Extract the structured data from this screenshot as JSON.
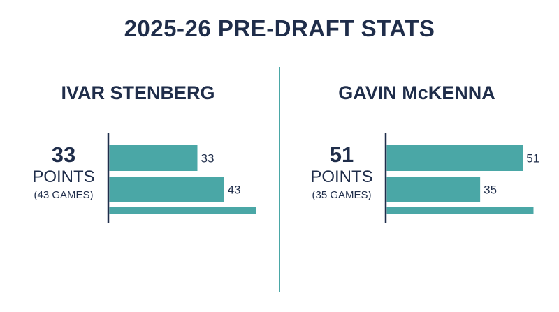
{
  "title": "2025-26 PRE-DRAFT STATS",
  "colors": {
    "bar": "#4aa7a6",
    "text": "#1f2d4a",
    "divider": "#4aa7a6",
    "axis": "#1f2d4a"
  },
  "players": [
    {
      "name": "IVAR STENBERG",
      "points": "33",
      "points_label": "POINTS",
      "games": "(43 GAMES)"
    },
    {
      "name": "GAVIN McKENNA",
      "points": "51",
      "points_label": "POINTS",
      "games": "(35 GAMES)"
    }
  ],
  "chart_data": [
    {
      "type": "bar",
      "orientation": "horizontal",
      "series": [
        {
          "values": [
            33,
            43,
            55
          ],
          "labels": [
            "33",
            "43",
            ""
          ]
        }
      ],
      "xlim": [
        0,
        55
      ],
      "axes_visible": false,
      "grid": false
    },
    {
      "type": "bar",
      "orientation": "horizontal",
      "series": [
        {
          "values": [
            51,
            35,
            55
          ],
          "labels": [
            "51",
            "35",
            ""
          ]
        }
      ],
      "xlim": [
        0,
        55
      ],
      "axes_visible": false,
      "grid": false
    }
  ]
}
